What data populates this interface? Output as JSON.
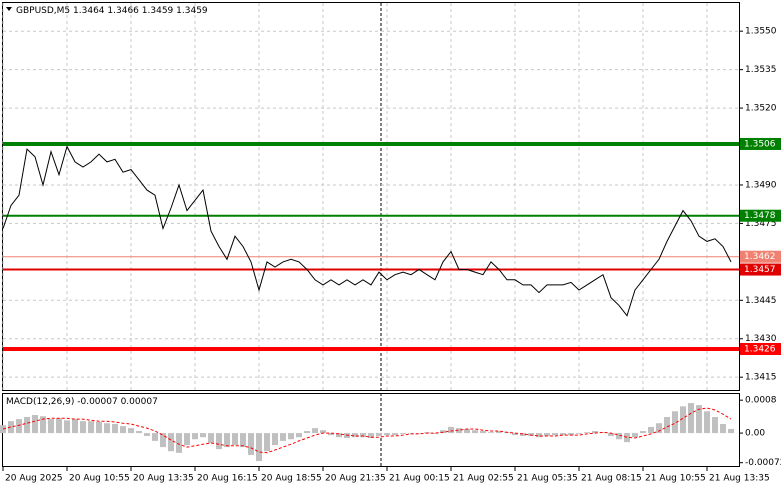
{
  "chart_data": [
    {
      "type": "line",
      "title": "GBPUSD,M5",
      "ohlc": [
        1.3464,
        1.3466,
        1.3459,
        1.3459
      ],
      "color": "#000000",
      "grid": true,
      "ylim": [
        1.341,
        1.3561
      ],
      "yticks": [
        {
          "value": 1.355,
          "label": "1.3550"
        },
        {
          "value": 1.3535,
          "label": "1.3535"
        },
        {
          "value": 1.352,
          "label": "1.3520"
        },
        {
          "value": 1.349,
          "label": "1.3490"
        },
        {
          "value": 1.3475,
          "label": "1.3475"
        },
        {
          "value": 1.3445,
          "label": "1.3445"
        },
        {
          "value": 1.343,
          "label": "1.3430"
        },
        {
          "value": 1.3415,
          "label": "1.3415"
        }
      ],
      "x_labels": [
        "20 Aug 2025",
        "20 Aug 10:55",
        "20 Aug 13:35",
        "20 Aug 16:15",
        "20 Aug 18:55",
        "20 Aug 21:35",
        "21 Aug 00:15",
        "21 Aug 02:55",
        "21 Aug 05:35",
        "21 Aug 08:15",
        "21 Aug 10:55",
        "21 Aug 13:35"
      ],
      "levels": [
        {
          "value": 1.3462,
          "color": "#f08070",
          "width": 1
        },
        {
          "value": 1.3506,
          "color": "#008000",
          "width": 4
        },
        {
          "value": 1.3478,
          "color": "#008000",
          "width": 2
        },
        {
          "value": 1.3457,
          "color": "#e00000",
          "width": 2
        },
        {
          "value": 1.3426,
          "color": "#ff0000",
          "width": 4
        }
      ],
      "values": [
        1.3473,
        1.3482,
        1.3486,
        1.3504,
        1.3501,
        1.349,
        1.3503,
        1.3494,
        1.3505,
        1.3499,
        1.3497,
        1.3499,
        1.3502,
        1.3499,
        1.35,
        1.3495,
        1.3496,
        1.3492,
        1.3488,
        1.3486,
        1.3473,
        1.3481,
        1.349,
        1.348,
        1.3484,
        1.3488,
        1.3472,
        1.3466,
        1.3461,
        1.347,
        1.3466,
        1.346,
        1.3449,
        1.346,
        1.3458,
        1.346,
        1.3461,
        1.346,
        1.3457,
        1.3453,
        1.3451,
        1.3453,
        1.3451,
        1.3453,
        1.3451,
        1.3453,
        1.3451,
        1.3456,
        1.3453,
        1.3455,
        1.3456,
        1.3455,
        1.3457,
        1.3455,
        1.3453,
        1.346,
        1.3464,
        1.3457,
        1.3457,
        1.3456,
        1.3455,
        1.346,
        1.3457,
        1.3453,
        1.3453,
        1.3451,
        1.3451,
        1.3448,
        1.3451,
        1.3451,
        1.3451,
        1.3452,
        1.3449,
        1.3451,
        1.3453,
        1.3455,
        1.3446,
        1.3443,
        1.3439,
        1.3449,
        1.3453,
        1.3457,
        1.3461,
        1.3468,
        1.3474,
        1.348,
        1.3476,
        1.347,
        1.3468,
        1.3469,
        1.3466,
        1.346
      ]
    },
    {
      "type": "bar",
      "title": "MACD(12,26,9)",
      "readout": [
        -7e-05,
        7e-05
      ],
      "ylim": [
        -0.0008,
        0.00095
      ],
      "yticks": [
        {
          "value": 0.0008,
          "label": "0.0008"
        },
        {
          "value": 0,
          "label": "0.00"
        },
        {
          "value": -0.00072,
          "label": "-0.00072"
        }
      ],
      "histogram": {
        "color": "#c0c0c0",
        "values": [
          0.00019,
          0.00029,
          0.00034,
          0.00039,
          0.00044,
          0.00041,
          0.00034,
          0.00036,
          0.00031,
          0.00034,
          0.00029,
          0.00029,
          0.00027,
          0.00024,
          0.00022,
          0.00017,
          0.00012,
          5e-05,
          -7e-05,
          -0.00019,
          -0.00034,
          -0.00044,
          -0.00048,
          -0.00029,
          -0.00015,
          -0.0001,
          -0.00024,
          -0.00039,
          -0.00034,
          -0.00029,
          -0.00034,
          -0.00053,
          -0.00068,
          -0.00044,
          -0.00029,
          -0.00019,
          -0.00015,
          -0.0001,
          5e-05,
          0.00012,
          7e-05,
          -5e-05,
          -0.0001,
          -0.00012,
          -0.0001,
          -0.0001,
          -0.00012,
          -7e-05,
          -5e-05,
          -5e-05,
          -2e-05,
          0,
          0,
          2e-05,
          -2e-05,
          7e-05,
          0.00015,
          0.00012,
          0.0001,
          7e-05,
          5e-05,
          2e-05,
          5e-05,
          2e-05,
          -5e-05,
          -7e-05,
          -7e-05,
          -0.0001,
          -7e-05,
          -5e-05,
          -5e-05,
          -5e-05,
          -2e-05,
          2e-05,
          5e-05,
          2e-05,
          -7e-05,
          -0.00015,
          -0.00022,
          -0.0001,
          5e-05,
          0.00015,
          0.00024,
          0.00039,
          0.00053,
          0.00065,
          0.00073,
          0.00068,
          0.00053,
          0.00039,
          0.00022,
          0.0001
        ]
      },
      "signal": {
        "color": "#ff0000",
        "values": [
          0.0001,
          0.00015,
          0.00019,
          0.00024,
          0.00029,
          0.00034,
          0.00036,
          0.00036,
          0.00036,
          0.00034,
          0.00034,
          0.00031,
          0.00029,
          0.00029,
          0.00027,
          0.00024,
          0.00022,
          0.00017,
          0.00012,
          5e-05,
          -5e-05,
          -0.00017,
          -0.00027,
          -0.00034,
          -0.00031,
          -0.00027,
          -0.00024,
          -0.00027,
          -0.00031,
          -0.00031,
          -0.00031,
          -0.00036,
          -0.00046,
          -0.00048,
          -0.00041,
          -0.00034,
          -0.00027,
          -0.00019,
          -0.00012,
          -5e-05,
          0,
          0,
          -2e-05,
          -5e-05,
          -7e-05,
          -7e-05,
          -0.0001,
          -0.0001,
          -7e-05,
          -7e-05,
          -5e-05,
          -2e-05,
          -2e-05,
          0,
          0,
          2e-05,
          5e-05,
          7e-05,
          0.0001,
          0.0001,
          7e-05,
          5e-05,
          5e-05,
          2e-05,
          0,
          -2e-05,
          -5e-05,
          -7e-05,
          -7e-05,
          -7e-05,
          -5e-05,
          -5e-05,
          -5e-05,
          -2e-05,
          0,
          2e-05,
          0,
          -5e-05,
          -0.0001,
          -0.00012,
          -7e-05,
          -2e-05,
          5e-05,
          0.00015,
          0.00024,
          0.00036,
          0.00048,
          0.00058,
          0.00061,
          0.00056,
          0.00046,
          0.00034
        ]
      }
    }
  ]
}
